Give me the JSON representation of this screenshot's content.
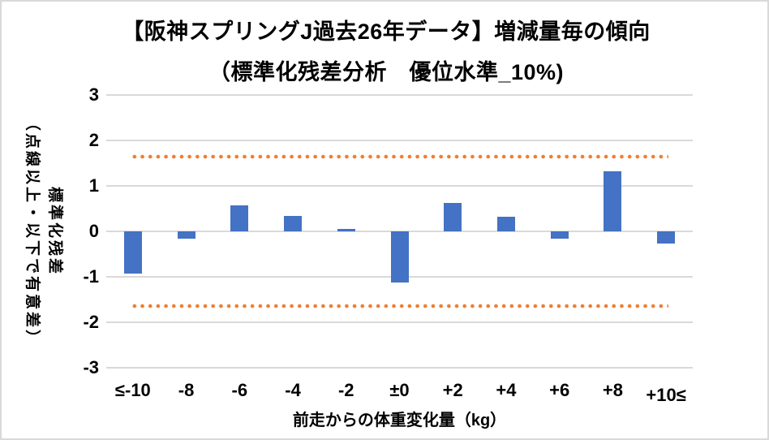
{
  "chart_data": {
    "type": "bar",
    "title_line1": "【阪神スプリングJ過去26年データ】増減量毎の傾向",
    "title_line2": "（標準化残差分析　優位水準_10%)",
    "categories": [
      "≤-10",
      "-8",
      "-6",
      "-4",
      "-2",
      "±0",
      "+2",
      "+4",
      "+6",
      "+8",
      "+10≤"
    ],
    "values": [
      -0.93,
      -0.16,
      0.58,
      0.34,
      0.05,
      -1.12,
      0.63,
      0.33,
      -0.16,
      1.32,
      -0.26
    ],
    "significance_upper": 1.65,
    "significance_lower": -1.65,
    "yticks": [
      3,
      2,
      1,
      0,
      -1,
      -2,
      -3
    ],
    "ylim": [
      -3,
      3
    ],
    "xlabel": "前走からの体重変化量（kg）",
    "ylabel_main": "標準化残差",
    "ylabel_sub": "（点線以上・以下で有意差）",
    "grid": "horizontal",
    "legend_position": "none",
    "colors": {
      "bar": "#4472C4",
      "significance_dots": "#ED7D31",
      "gridline": "#D9D9D9",
      "text": "#000000",
      "frame_border": "#D9D9D9"
    }
  }
}
